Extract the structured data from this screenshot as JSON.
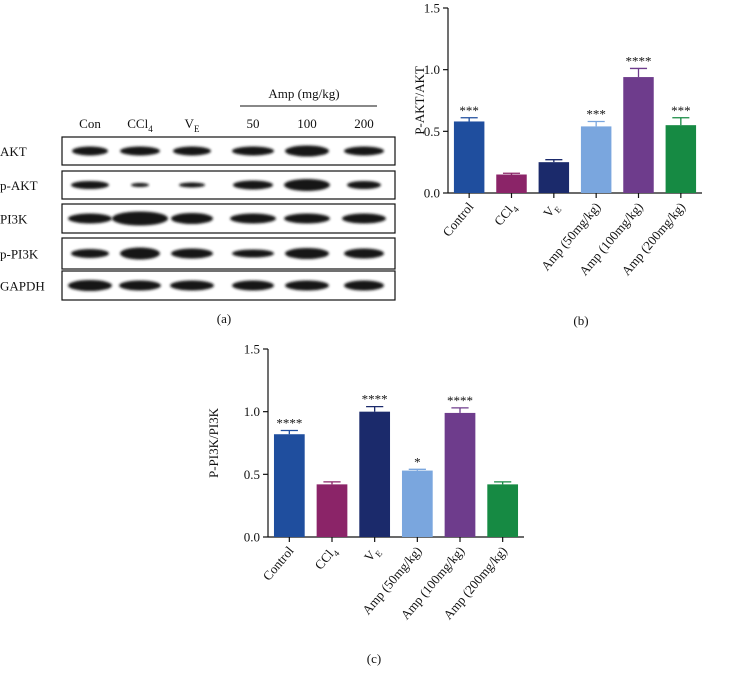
{
  "blot": {
    "group_title": "Amp (mg/kg)",
    "lanes": [
      "Con",
      "CCl",
      "V",
      "50",
      "100",
      "200"
    ],
    "lane_subscripts": [
      "",
      "4",
      "E",
      "",
      "",
      ""
    ],
    "rows": [
      "AKT",
      "p-AKT",
      "PI3K",
      "p-PI3K",
      "GAPDH"
    ],
    "panel_label": "(a)"
  },
  "chart_data": [
    {
      "type": "bar",
      "panel_label": "(b)",
      "ylabel": "P-AKT/AKT",
      "ylim": [
        0,
        1.5
      ],
      "yticks": [
        "0.0",
        "0.5",
        "1.0",
        "1.5"
      ],
      "categories": [
        "Control",
        "CCl4",
        "VE",
        "Amp (50mg/kg)",
        "Amp (100mg/kg)",
        "Amp (200mg/kg)"
      ],
      "category_main": [
        "Control",
        "CCl",
        "V",
        "Amp (50mg/kg)",
        "Amp (100mg/kg)",
        "Amp (200mg/kg)"
      ],
      "category_sub": [
        "",
        "4",
        "E",
        "",
        "",
        ""
      ],
      "values": [
        0.58,
        0.15,
        0.25,
        0.54,
        0.94,
        0.55
      ],
      "errors": [
        0.03,
        0.01,
        0.02,
        0.04,
        0.07,
        0.06
      ],
      "significance": [
        "***",
        "",
        "",
        "***",
        "****",
        "***"
      ],
      "colors": [
        "#1f4e9e",
        "#8b2468",
        "#1b2a6b",
        "#7aa6de",
        "#6e3c8c",
        "#168a43"
      ],
      "grid": false
    },
    {
      "type": "bar",
      "panel_label": "(c)",
      "ylabel": "P-PI3K/PI3K",
      "ylim": [
        0,
        1.5
      ],
      "yticks": [
        "0.0",
        "0.5",
        "1.0",
        "1.5"
      ],
      "categories": [
        "Control",
        "CCl4",
        "VE",
        "Amp (50mg/kg)",
        "Amp (100mg/kg)",
        "Amp (200mg/kg)"
      ],
      "category_main": [
        "Control",
        "CCl",
        "V",
        "Amp (50mg/kg)",
        "Amp (100mg/kg)",
        "Amp (200mg/kg)"
      ],
      "category_sub": [
        "",
        "4",
        "E",
        "",
        "",
        ""
      ],
      "values": [
        0.82,
        0.42,
        1.0,
        0.53,
        0.99,
        0.42
      ],
      "errors": [
        0.03,
        0.02,
        0.04,
        0.01,
        0.04,
        0.02
      ],
      "significance": [
        "****",
        "",
        "****",
        "*",
        "****",
        ""
      ],
      "colors": [
        "#1f4e9e",
        "#8b2468",
        "#1b2a6b",
        "#7aa6de",
        "#6e3c8c",
        "#168a43"
      ],
      "grid": false
    }
  ]
}
